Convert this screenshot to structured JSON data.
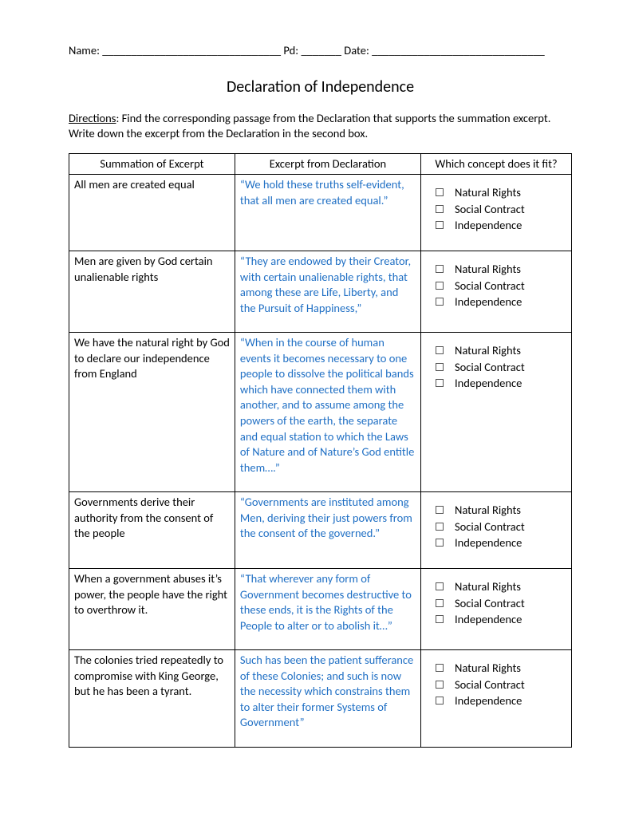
{
  "header": {
    "name_label": "Name:",
    "name_underline": "_______________________________",
    "pd_label": "Pd:",
    "pd_underline": "_______",
    "date_label": "Date:",
    "date_underline": "______________________________"
  },
  "title": "Declaration of Independence",
  "directions": {
    "label": "Directions",
    "text": ":  Find the corresponding passage from the Declaration that supports the summation excerpt. Write down the excerpt from the Declaration in the second box."
  },
  "columns": {
    "c1": "Summation of Excerpt",
    "c2": "Excerpt from Declaration",
    "c3": "Which concept does it fit?"
  },
  "concepts": [
    "Natural Rights",
    "Social Contract",
    "Independence"
  ],
  "rows": [
    {
      "summation": "All men are created equal",
      "excerpt": "“We hold these truths self-evident, that all men are created equal.”"
    },
    {
      "summation": "Men are given by God certain unalienable rights",
      "excerpt": "“They are endowed by their Creator, with certain unalienable rights, that among these are Life, Liberty, and the Pursuit of Happiness,”"
    },
    {
      "summation": "We have the natural right by God to declare our independence from England",
      "excerpt": "“When in the course of human events it becomes necessary to one people to dissolve the political bands which have connected them with another, and to assume among the powers of the earth, the separate and equal station to which the Laws of Nature and of Nature’s God entitle them….”"
    },
    {
      "summation": "Governments derive their authority from the consent of the people",
      "excerpt": "“Governments are instituted among Men, deriving their just powers from the consent of the governed.”"
    },
    {
      "summation": "When a government abuses it’s power, the people have the right to overthrow it.",
      "excerpt": "“That wherever any form of Government becomes destructive to these ends, it is the Rights of the People to alter or to abolish it…”"
    },
    {
      "summation": "The colonies tried repeatedly to compromise with King George, but he has been a tyrant.",
      "excerpt": "Such has been the patient sufferance of these Colonies; and such is now the necessity which constrains them to alter their former Systems of Government”"
    }
  ],
  "colors": {
    "excerpt_text": "#1f6fc4",
    "body_text": "#000000",
    "border": "#000000",
    "page_bg": "#ffffff"
  },
  "typography": {
    "body_fontsize": 14.5,
    "title_fontsize": 20,
    "font_family": "Calibri"
  }
}
